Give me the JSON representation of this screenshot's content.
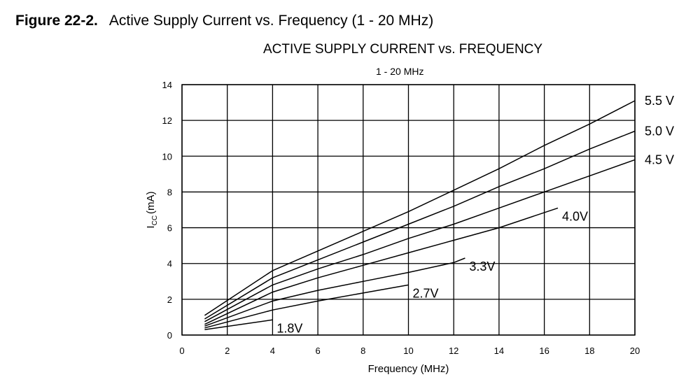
{
  "figure": {
    "number": "Figure 22-2.",
    "caption": "Active Supply Current vs. Frequency (1 - 20 MHz)"
  },
  "chart_data": {
    "type": "line",
    "title": "ACTIVE SUPPLY CURRENT vs. FREQUENCY",
    "subtitle": "1 - 20 MHz",
    "xlabel": "Frequency (MHz)",
    "ylabel_main": "I",
    "ylabel_sub": "CC",
    "ylabel_unit": "(mA)",
    "xlim": [
      0,
      20
    ],
    "ylim": [
      0,
      14
    ],
    "xticks": [
      0,
      2,
      4,
      6,
      8,
      10,
      12,
      14,
      16,
      18,
      20
    ],
    "yticks": [
      0,
      2,
      4,
      6,
      8,
      10,
      12,
      14
    ],
    "grid": true,
    "legend": "none",
    "series": [
      {
        "name": "5.5 V",
        "x": [
          1,
          4,
          6,
          8,
          10,
          12,
          14,
          16,
          18,
          20
        ],
        "y": [
          1.1,
          3.6,
          4.7,
          5.8,
          6.9,
          8.1,
          9.3,
          10.6,
          11.8,
          13.1
        ]
      },
      {
        "name": "5.0 V",
        "x": [
          1,
          4,
          6,
          8,
          10,
          12,
          14,
          16,
          18,
          20
        ],
        "y": [
          0.9,
          3.2,
          4.2,
          5.2,
          6.2,
          7.2,
          8.3,
          9.3,
          10.4,
          11.4
        ]
      },
      {
        "name": "4.5 V",
        "x": [
          1,
          4,
          6,
          8,
          10,
          12,
          14,
          16,
          18,
          20
        ],
        "y": [
          0.75,
          2.8,
          3.7,
          4.5,
          5.4,
          6.2,
          7.1,
          8.0,
          8.9,
          9.8
        ]
      },
      {
        "name": "4.0V",
        "x": [
          1,
          4,
          6,
          8,
          10,
          12,
          14,
          16.6
        ],
        "y": [
          0.6,
          2.4,
          3.2,
          3.9,
          4.6,
          5.3,
          6.0,
          7.1
        ]
      },
      {
        "name": "3.3V",
        "x": [
          1,
          4,
          6,
          8,
          10,
          12,
          12.5
        ],
        "y": [
          0.5,
          1.9,
          2.5,
          3.0,
          3.5,
          4.05,
          4.3
        ]
      },
      {
        "name": "2.7V",
        "x": [
          1,
          4,
          6,
          8,
          10
        ],
        "y": [
          0.4,
          1.4,
          1.9,
          2.35,
          2.8
        ]
      },
      {
        "name": "1.8V",
        "x": [
          1,
          4
        ],
        "y": [
          0.3,
          0.85
        ]
      }
    ]
  }
}
